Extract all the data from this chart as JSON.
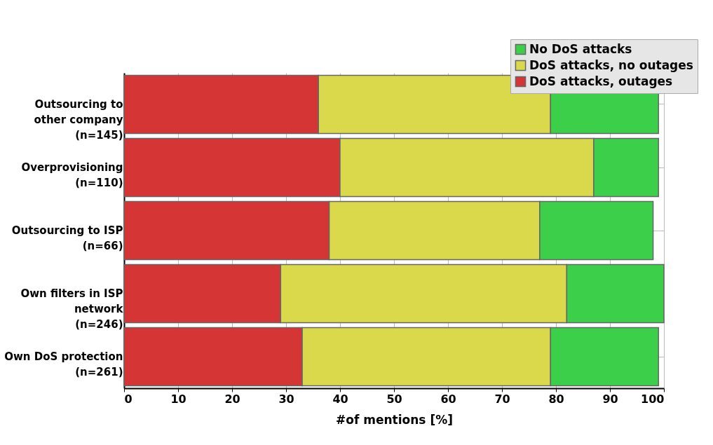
{
  "chart_data": {
    "type": "bar",
    "orientation": "horizontal",
    "stacked": true,
    "xlabel": "#of mentions [%]",
    "categories": [
      "Outsourcing to\nother company\n(n=145)",
      "Overprovisioning\n(n=110)",
      "Outsourcing to ISP\n(n=66)",
      "Own filters in ISP\nnetwork\n(n=246)",
      "Own DoS protection\n(n=261)"
    ],
    "series": [
      {
        "name": "DoS attacks, outages",
        "color": "#d63535",
        "values": [
          36,
          40,
          38,
          29,
          33
        ]
      },
      {
        "name": "DoS attacks, no outages",
        "color": "#d9d94b",
        "values": [
          43,
          47,
          39,
          53,
          46
        ]
      },
      {
        "name": "No DoS attacks",
        "color": "#3ccf4a",
        "values": [
          20,
          12,
          21,
          18,
          20
        ]
      }
    ],
    "xlim": [
      0,
      100
    ],
    "xticks": [
      0,
      10,
      20,
      30,
      40,
      50,
      60,
      70,
      80,
      90,
      100
    ],
    "grid": true,
    "legend": "top right"
  }
}
